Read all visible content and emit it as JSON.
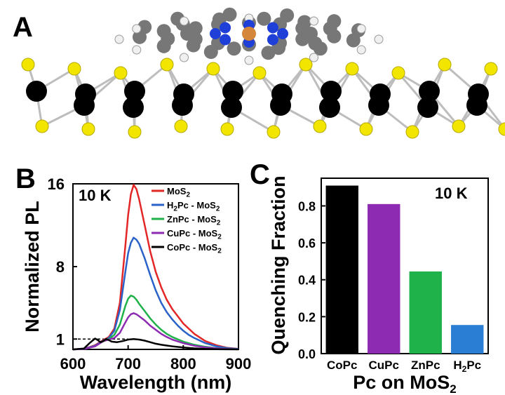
{
  "panel_labels": {
    "a": "A",
    "b": "B",
    "c": "C"
  },
  "colors": {
    "molybdenum": "#000000",
    "sulfur": "#f2e600",
    "carbon": "#777777",
    "nitrogen": "#1e3fd8",
    "hydrogen": "#f0f0f0",
    "metal_center": "#d4863a",
    "bond": "#bdbdbd"
  },
  "chart_data": [
    {
      "type": "line",
      "temperature_label": "10 K",
      "xlabel": "Wavelength (nm)",
      "ylabel": "Normalized PL",
      "xlim": [
        600,
        900
      ],
      "ylim": [
        0,
        16
      ],
      "xticks": [
        "600",
        "700",
        "800",
        "900"
      ],
      "yticks": [
        "1",
        "8",
        "16"
      ],
      "reference_line": {
        "y": 1,
        "style": "dashed",
        "x_end": 700
      },
      "legend_position": "top-right",
      "legend": [
        {
          "main": "MoS",
          "sub": "2",
          "tail": "",
          "color": "#e32626"
        },
        {
          "main": "H",
          "sub": "2",
          "tail": "Pc - MoS",
          "sub2": "2",
          "color": "#2a62c9"
        },
        {
          "main": "ZnPc - MoS",
          "sub": "2",
          "tail": "",
          "color": "#1fb14a"
        },
        {
          "main": "CuPc - MoS",
          "sub": "2",
          "tail": "",
          "color": "#8e2bb3"
        },
        {
          "main": "CoPc - MoS",
          "sub": "2",
          "tail": "",
          "color": "#000000"
        }
      ],
      "series": [
        {
          "name": "MoS2",
          "color": "#e32626",
          "x": [
            600,
            620,
            640,
            655,
            665,
            675,
            685,
            695,
            700,
            705,
            710,
            715,
            720,
            730,
            740,
            750,
            760,
            770,
            780,
            790,
            800,
            810,
            820,
            840,
            860,
            880,
            900
          ],
          "y": [
            0,
            0.05,
            0.4,
            0.9,
            1.2,
            2,
            4.5,
            10,
            13,
            15,
            15.9,
            15.5,
            14.5,
            12,
            9.5,
            7.5,
            6,
            4.8,
            3.9,
            3.2,
            2.5,
            2,
            1.5,
            0.8,
            0.4,
            0.15,
            0.05
          ]
        },
        {
          "name": "H2Pc - MoS2",
          "color": "#2a62c9",
          "x": [
            600,
            620,
            640,
            655,
            665,
            675,
            685,
            695,
            700,
            705,
            710,
            715,
            720,
            730,
            740,
            750,
            760,
            770,
            780,
            790,
            800,
            810,
            820,
            840,
            860,
            880,
            900
          ],
          "y": [
            0,
            0.05,
            0.35,
            0.85,
            1.1,
            1.8,
            3.8,
            7.5,
            9.3,
            10.3,
            10.8,
            10.6,
            10.2,
            8.8,
            7.2,
            5.7,
            4.5,
            3.6,
            2.9,
            2.3,
            1.8,
            1.4,
            1.1,
            0.6,
            0.3,
            0.12,
            0.04
          ]
        },
        {
          "name": "ZnPc - MoS2",
          "color": "#1fb14a",
          "x": [
            600,
            620,
            640,
            655,
            665,
            675,
            685,
            695,
            700,
            705,
            710,
            715,
            720,
            730,
            740,
            750,
            760,
            770,
            780,
            800,
            820,
            840,
            860,
            880,
            900
          ],
          "y": [
            0,
            0.04,
            0.3,
            0.8,
            1,
            1.4,
            2.4,
            4.2,
            4.9,
            5.2,
            5.1,
            4.8,
            4.4,
            3.7,
            3,
            2.4,
            1.9,
            1.5,
            1.2,
            0.75,
            0.45,
            0.25,
            0.12,
            0.05,
            0.02
          ]
        },
        {
          "name": "CuPc - MoS2",
          "color": "#8e2bb3",
          "x": [
            600,
            620,
            640,
            655,
            665,
            675,
            685,
            695,
            700,
            705,
            710,
            715,
            720,
            730,
            740,
            750,
            760,
            770,
            780,
            800,
            820,
            840,
            860,
            880,
            900
          ],
          "y": [
            0,
            0.04,
            0.3,
            0.8,
            0.95,
            1.1,
            1.6,
            2.6,
            3.1,
            3.4,
            3.5,
            3.4,
            3.2,
            2.8,
            2.3,
            1.9,
            1.5,
            1.2,
            0.95,
            0.6,
            0.35,
            0.2,
            0.1,
            0.04,
            0.01
          ]
        },
        {
          "name": "CoPc - MoS2",
          "color": "#000000",
          "x": [
            600,
            620,
            630,
            640,
            645,
            650,
            655,
            660,
            665,
            670,
            680,
            690,
            700,
            710,
            720,
            730,
            740,
            750,
            760,
            780,
            800,
            820,
            840,
            860,
            880,
            900
          ],
          "y": [
            0,
            0.08,
            0.6,
            1.05,
            0.9,
            0.7,
            0.8,
            1.0,
            0.9,
            0.75,
            0.7,
            0.8,
            0.95,
            1.0,
            0.95,
            0.85,
            0.7,
            0.55,
            0.45,
            0.3,
            0.18,
            0.1,
            0.05,
            0.02,
            0.01,
            0
          ]
        }
      ]
    },
    {
      "type": "bar",
      "temperature_label": "10 K",
      "xlabel_main": "Pc on MoS",
      "xlabel_sub": "2",
      "ylabel": "Quenching Fraction",
      "ylim": [
        0,
        0.95
      ],
      "yticks": [
        "0.0",
        "0.2",
        "0.4",
        "0.6",
        "0.8"
      ],
      "categories": [
        "CoPc",
        "CuPc",
        "ZnPc",
        "H2Pc"
      ],
      "category_labels": [
        {
          "main": "CoPc",
          "sub": "",
          "tail": ""
        },
        {
          "main": "CuPc",
          "sub": "",
          "tail": ""
        },
        {
          "main": "ZnPc",
          "sub": "",
          "tail": ""
        },
        {
          "main": "H",
          "sub": "2",
          "tail": "Pc"
        }
      ],
      "values": [
        0.91,
        0.81,
        0.445,
        0.155
      ],
      "bar_colors": [
        "#000000",
        "#8e2bb3",
        "#1fb14a",
        "#2a7fd4"
      ]
    }
  ]
}
